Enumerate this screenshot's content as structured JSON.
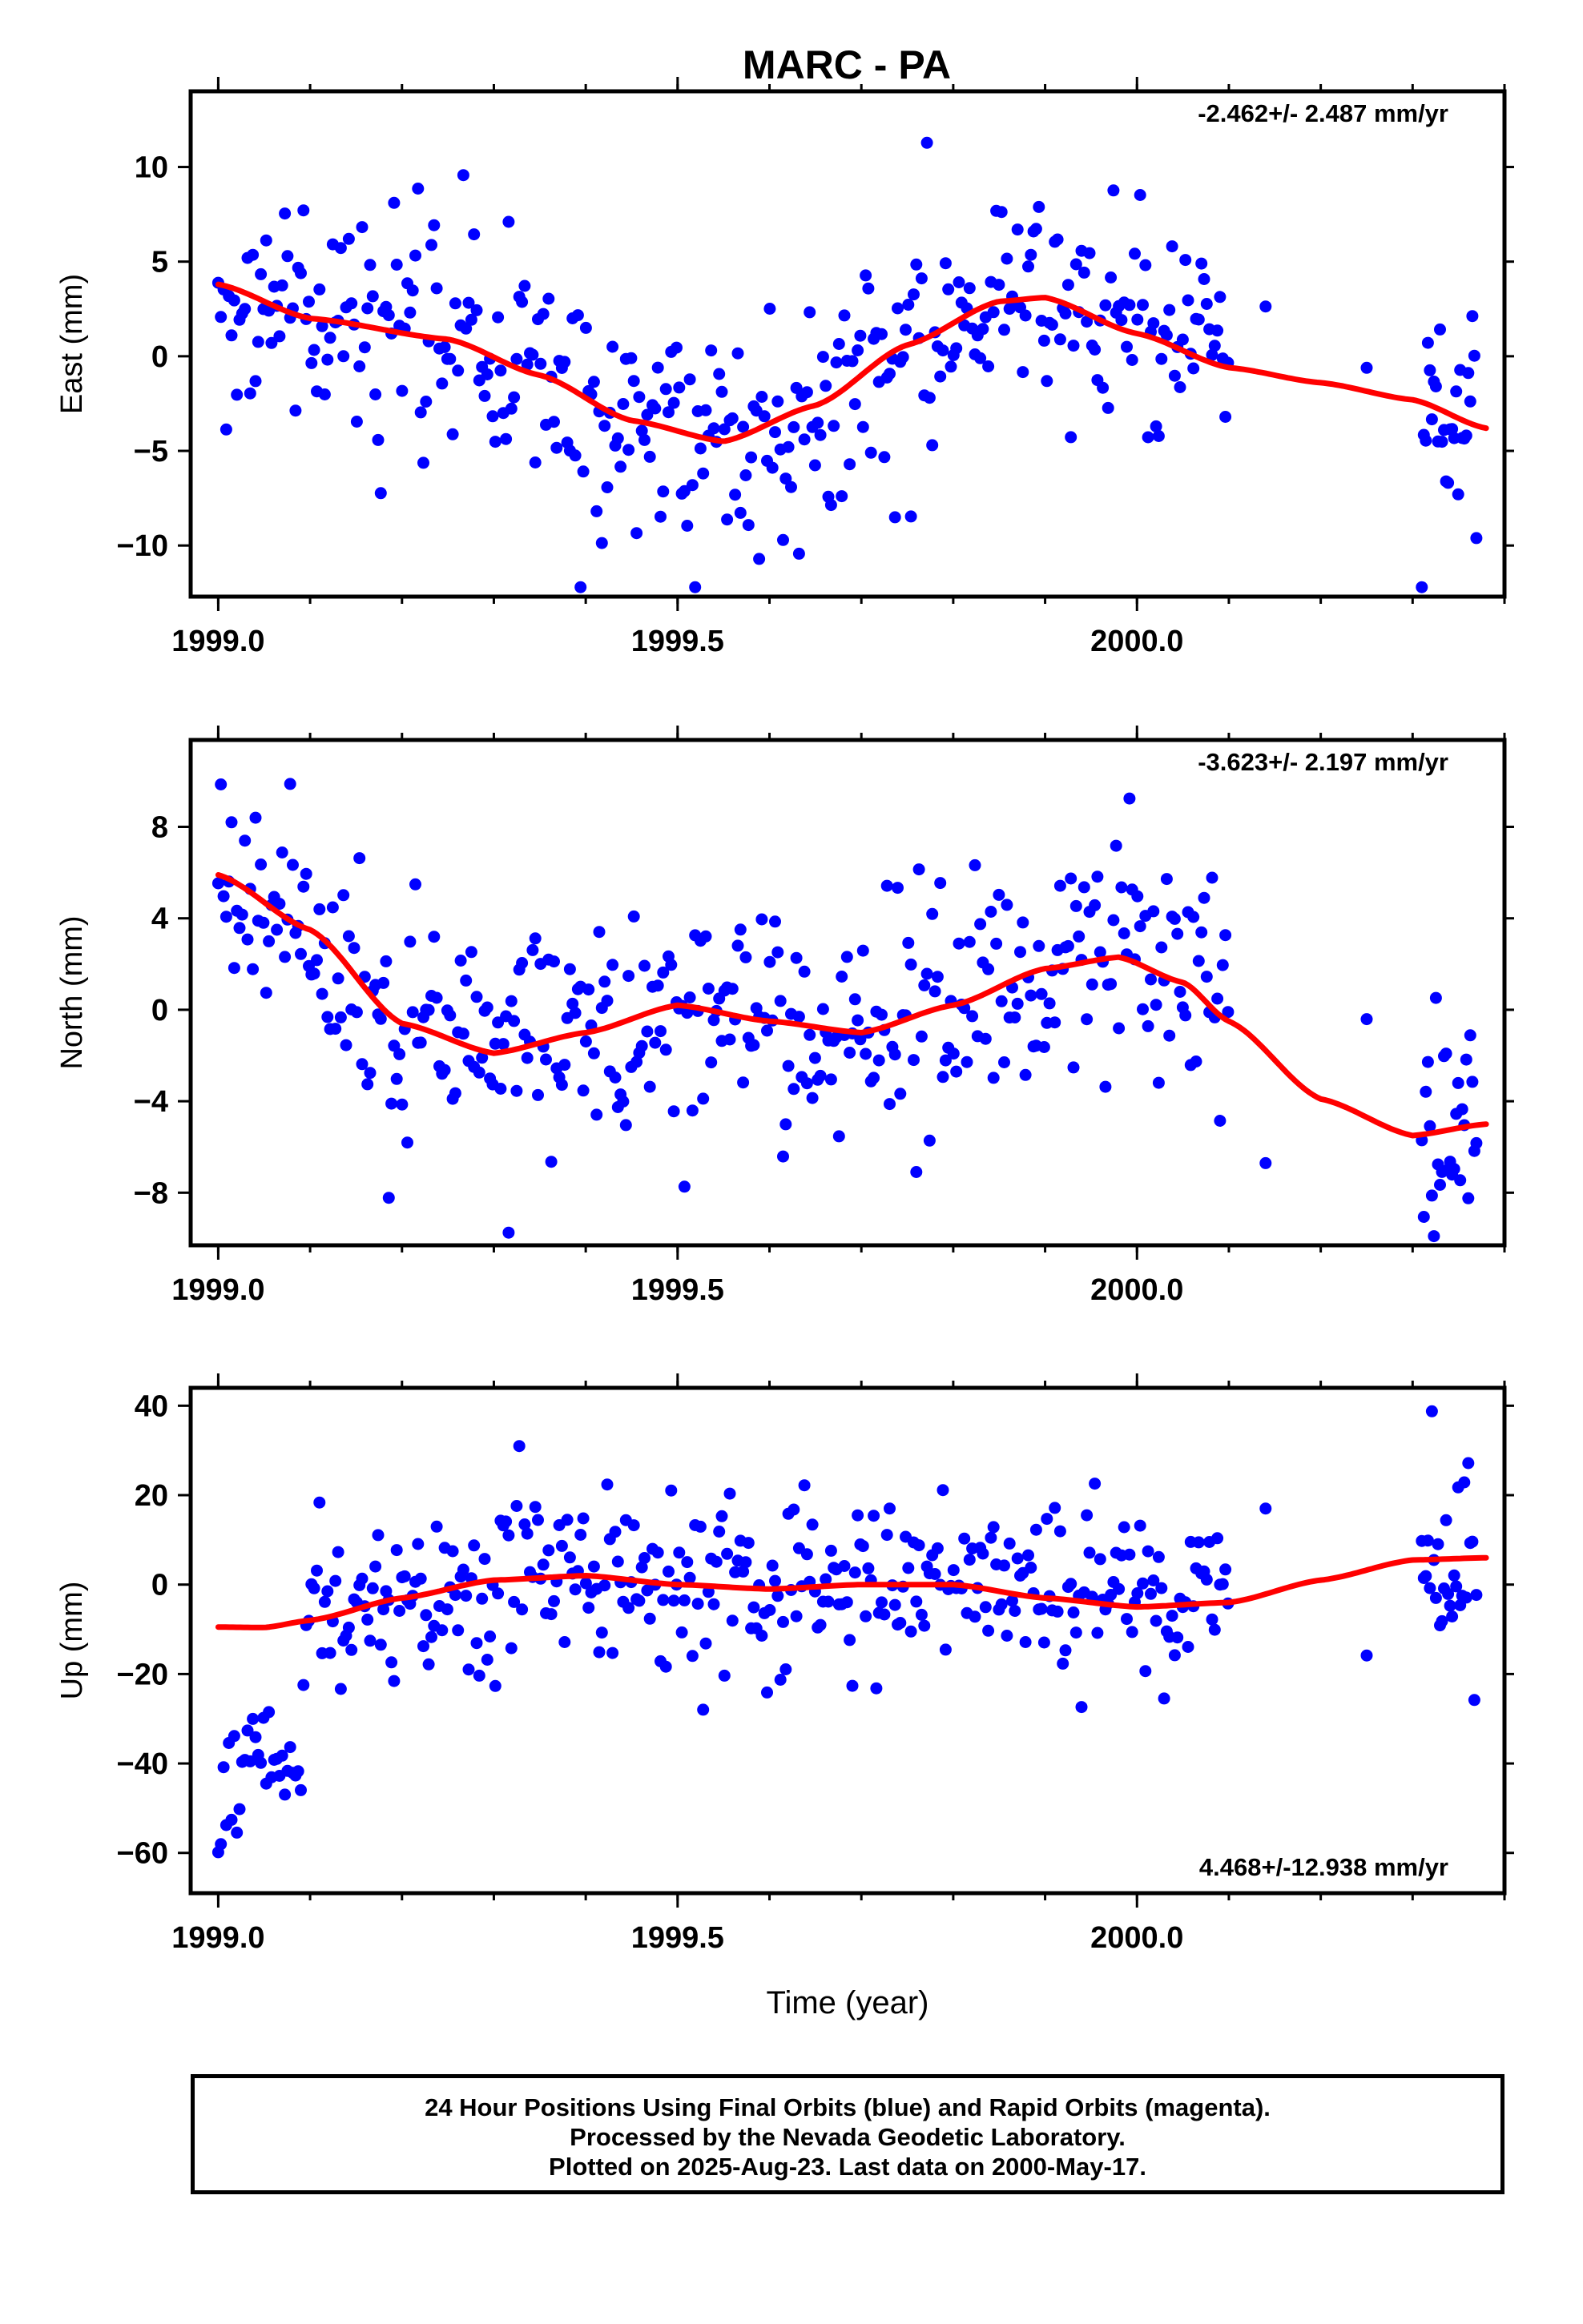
{
  "title": "MARC - PA",
  "footer": {
    "line1": "24 Hour Positions Using Final Orbits (blue) and Rapid Orbits (magenta).",
    "line2": "Processed by the Nevada Geodetic Laboratory.",
    "line3": "Plotted on 2025-Aug-23. Last data on 2000-May-17."
  },
  "colors": {
    "points": "#0000ff",
    "fit": "#ff0000",
    "axes": "#000000"
  },
  "chart_data": [
    {
      "type": "scatter",
      "ylabel": "East (mm)",
      "xlabel": "",
      "xlim": [
        1998.97,
        2000.4
      ],
      "ylim": [
        -12.7,
        14.0
      ],
      "xticks": [
        "1999.0",
        "1999.5",
        "2000.0"
      ],
      "yticks": [
        -10,
        -5,
        0,
        5,
        10
      ],
      "yticklabels": [
        "−10",
        "−5",
        "0",
        "5",
        "10"
      ],
      "rate": "-2.462+/- 2.487 mm/yr",
      "rate_position": "top-right",
      "trend": {
        "x": [
          1999.0,
          1999.1,
          1999.25,
          1999.35,
          1999.45,
          1999.55,
          1999.65,
          1999.75,
          1999.85,
          1999.9,
          2000.0,
          2000.1,
          2000.2,
          2000.3,
          2000.38
        ],
        "y": [
          3.8,
          2.0,
          0.9,
          -1.0,
          -3.4,
          -4.5,
          -2.6,
          0.6,
          2.9,
          3.1,
          1.2,
          -0.6,
          -1.4,
          -2.3,
          -3.8
        ]
      }
    },
    {
      "type": "scatter",
      "ylabel": "North (mm)",
      "xlabel": "",
      "xlim": [
        1998.97,
        2000.4
      ],
      "ylim": [
        -10.3,
        11.8
      ],
      "xticks": [
        "1999.0",
        "1999.5",
        "2000.0"
      ],
      "yticks": [
        -8,
        -4,
        0,
        4,
        8
      ],
      "yticklabels": [
        "−8",
        "−4",
        "0",
        "4",
        "8"
      ],
      "rate": "-3.623+/- 2.197 mm/yr",
      "rate_position": "top-right",
      "trend": {
        "x": [
          1999.0,
          1999.1,
          1999.2,
          1999.3,
          1999.4,
          1999.5,
          1999.6,
          1999.7,
          1999.8,
          1999.9,
          1999.98,
          2000.05,
          2000.1,
          2000.2,
          2000.3,
          2000.38
        ],
        "y": [
          5.9,
          3.5,
          -0.6,
          -1.9,
          -1.0,
          0.2,
          -0.5,
          -1.0,
          0.2,
          1.8,
          2.3,
          1.2,
          -0.5,
          -3.9,
          -5.5,
          -5.0
        ]
      }
    },
    {
      "type": "scatter",
      "ylabel": "Up (mm)",
      "xlabel": "Time (year)",
      "xlim": [
        1998.97,
        2000.4
      ],
      "ylim": [
        -69.0,
        44.0
      ],
      "xticks": [
        "1999.0",
        "1999.5",
        "2000.0"
      ],
      "yticks": [
        -60,
        -40,
        -20,
        0,
        20,
        40
      ],
      "yticklabels": [
        "−60",
        "−40",
        "−20",
        "0",
        "20",
        "40"
      ],
      "rate": "4.468+/-12.938 mm/yr",
      "rate_position": "bottom-right",
      "trend": {
        "x": [
          1999.0,
          1999.05,
          1999.1,
          1999.2,
          1999.3,
          1999.4,
          1999.5,
          1999.6,
          1999.7,
          1999.8,
          1999.9,
          2000.0,
          2000.1,
          2000.2,
          2000.3,
          2000.38
        ],
        "y": [
          -9.5,
          -9.6,
          -8.0,
          -3.0,
          1.0,
          2.0,
          0.0,
          -1.0,
          0.0,
          0.0,
          -3.0,
          -5.0,
          -4.0,
          1.0,
          5.5,
          6.0
        ]
      }
    }
  ]
}
